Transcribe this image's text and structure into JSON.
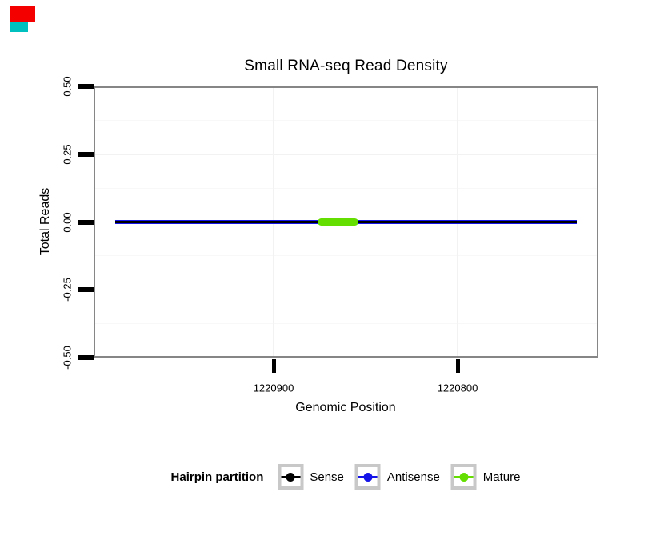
{
  "artifacts": {
    "red_color": "#f40000",
    "teal_color": "#00bfbf"
  },
  "chart_data": {
    "type": "line",
    "title": "Small RNA-seq Read Density",
    "xlabel": "Genomic Position",
    "ylabel": "Total Reads",
    "x_axis_reversed": true,
    "xlim": [
      1220998,
      1220723
    ],
    "x_ticks": [
      {
        "value": 1220900,
        "label": "1220900"
      },
      {
        "value": 1220800,
        "label": "1220800"
      }
    ],
    "x_minor_grid": [
      1220950,
      1220850,
      1220750
    ],
    "ylim": [
      -0.5,
      0.5
    ],
    "y_ticks": [
      {
        "value": 0.5,
        "label": "0.50"
      },
      {
        "value": 0.25,
        "label": "0.25"
      },
      {
        "value": 0.0,
        "label": "0.00"
      },
      {
        "value": -0.25,
        "label": "-0.25"
      },
      {
        "value": -0.5,
        "label": "-0.50"
      }
    ],
    "y_minor_grid": [
      0.375,
      0.125,
      -0.125,
      -0.375
    ],
    "grid": true,
    "series": [
      {
        "name": "Sense",
        "color": "#000000",
        "x_start": 1220986,
        "x_end": 1220735,
        "y": 0
      },
      {
        "name": "Antisense",
        "color": "#1414e8",
        "x_start": 1220986,
        "x_end": 1220735,
        "y": 0
      },
      {
        "name": "Mature",
        "color": "#63de00",
        "x_start": 1220876,
        "x_end": 1220854,
        "y": 0
      }
    ],
    "legend": {
      "title": "Hairpin partition",
      "position": "bottom",
      "entries": [
        {
          "label": "Sense",
          "color": "#000000"
        },
        {
          "label": "Antisense",
          "color": "#1414e8"
        },
        {
          "label": "Mature",
          "color": "#63de00"
        }
      ]
    }
  }
}
